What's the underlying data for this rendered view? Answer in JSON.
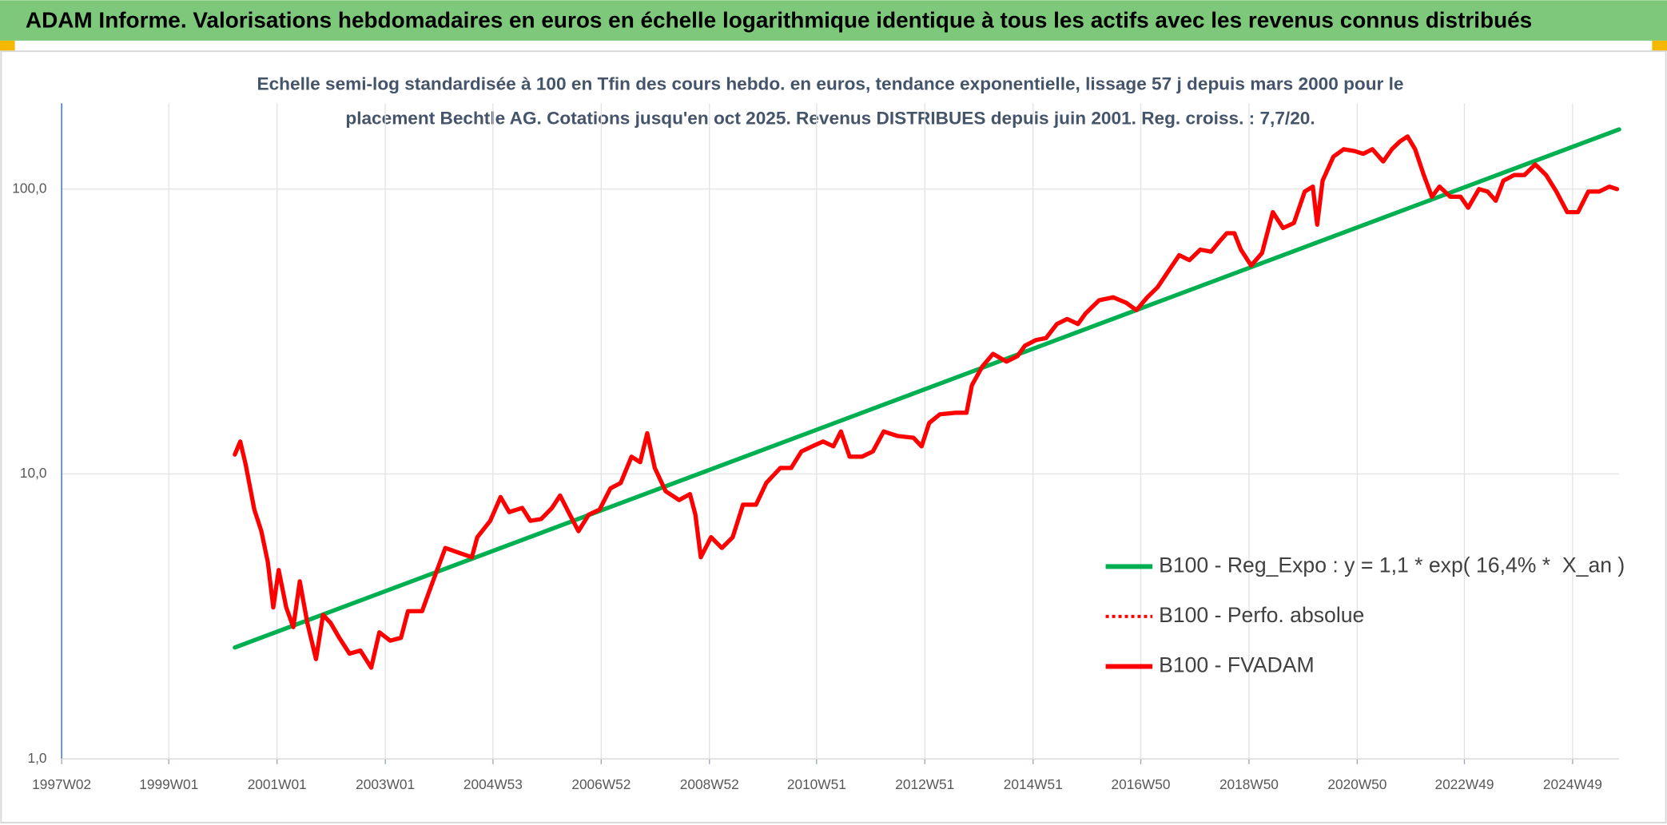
{
  "header": {
    "title": "ADAM Informe. Valorisations hebdomadaires en euros en échelle logarithmique identique à tous les actifs avec les revenus connus distribués"
  },
  "chart_data": {
    "type": "line",
    "title": [
      "Echelle semi-log standardisée à 100 en Tfin des cours hebdo. en euros, tendance exponentielle, lissage 57 j depuis mars 2000 pour le",
      "placement Bechtle AG. Cotations jusqu'en oct 2025. Revenus DISTRIBUES depuis juin 2001. Reg. croiss. : 7,7/20."
    ],
    "xlim": [
      1997.02,
      2025.8
    ],
    "xticks": [
      {
        "value": 1997.02,
        "label": "1997W02"
      },
      {
        "value": 1999.0,
        "label": "1999W01"
      },
      {
        "value": 2001.0,
        "label": "2001W01"
      },
      {
        "value": 2003.0,
        "label": "2003W01"
      },
      {
        "value": 2004.99,
        "label": "2004W53"
      },
      {
        "value": 2006.99,
        "label": "2006W52"
      },
      {
        "value": 2008.99,
        "label": "2008W52"
      },
      {
        "value": 2010.97,
        "label": "2010W51"
      },
      {
        "value": 2012.97,
        "label": "2012W51"
      },
      {
        "value": 2014.97,
        "label": "2014W51"
      },
      {
        "value": 2016.96,
        "label": "2016W50"
      },
      {
        "value": 2018.96,
        "label": "2018W50"
      },
      {
        "value": 2020.96,
        "label": "2020W50"
      },
      {
        "value": 2022.94,
        "label": "2022W49"
      },
      {
        "value": 2024.94,
        "label": "2024W49"
      }
    ],
    "ylim": [
      1,
      200
    ],
    "yticks": [
      {
        "value": 1,
        "label": "1,0"
      },
      {
        "value": 10,
        "label": "10,0"
      },
      {
        "value": 100,
        "label": "100,0"
      }
    ],
    "log_scale": true,
    "grid": true,
    "legend": "center-right",
    "series": [
      {
        "name": "B100 - Reg_Expo : y = 1,1 * exp( 16,4% *  X_an )",
        "color": "#00b050",
        "style": "solid",
        "x": [
          2000.22,
          2025.8
        ],
        "values": [
          2.46,
          162
        ]
      },
      {
        "name": "B100 - Perfo. absolue",
        "color": "#ff0000",
        "style": "dotted",
        "x": [
          2000.22,
          2000.32,
          2000.42,
          2000.58,
          2000.71,
          2000.83,
          2000.93,
          2001.03,
          2001.17,
          2001.3,
          2001.42,
          2001.56,
          2001.72,
          2001.85,
          2001.99,
          2002.15,
          2002.34,
          2002.54,
          2002.74,
          2002.89,
          2003.09,
          2003.29,
          2003.42,
          2003.68,
          2003.88,
          2004.11,
          2004.35,
          2004.6,
          2004.7,
          2004.94,
          2005.13,
          2005.29,
          2005.53,
          2005.68,
          2005.88,
          2006.08,
          2006.23,
          2006.41,
          2006.57,
          2006.76,
          2006.96,
          2007.16,
          2007.35,
          2007.55,
          2007.71,
          2007.84,
          2007.98,
          2008.18,
          2008.43,
          2008.63,
          2008.73,
          2008.83,
          2009.02,
          2009.22,
          2009.42,
          2009.61,
          2009.85,
          2010.04,
          2010.3,
          2010.5,
          2010.69,
          2010.89,
          2011.09,
          2011.28,
          2011.42,
          2011.58,
          2011.81,
          2012.01,
          2012.21,
          2012.46,
          2012.76,
          2012.91,
          2013.05,
          2013.25,
          2013.54,
          2013.74,
          2013.84,
          2014.03,
          2014.23,
          2014.48,
          2014.68,
          2014.82,
          2015.02,
          2015.21,
          2015.41,
          2015.6,
          2015.8,
          2015.94,
          2016.19,
          2016.45,
          2016.69,
          2016.88,
          2017.08,
          2017.27,
          2017.47,
          2017.67,
          2017.86,
          2018.06,
          2018.26,
          2018.41,
          2018.55,
          2018.69,
          2018.81,
          2019.0,
          2019.2,
          2019.4,
          2019.59,
          2019.79,
          2019.99,
          2020.14,
          2020.22,
          2020.32,
          2020.52,
          2020.71,
          2020.91,
          2021.07,
          2021.24,
          2021.44,
          2021.6,
          2021.75,
          2021.89,
          2022.03,
          2022.19,
          2022.34,
          2022.48,
          2022.68,
          2022.87,
          2023.01,
          2023.21,
          2023.37,
          2023.52,
          2023.66,
          2023.86,
          2024.05,
          2024.25,
          2024.45,
          2024.64,
          2024.84,
          2025.04,
          2025.23,
          2025.43,
          2025.62,
          2025.76
        ],
        "values": [
          11.7,
          13.0,
          10.8,
          7.5,
          6.3,
          4.9,
          3.4,
          4.6,
          3.4,
          2.9,
          4.2,
          3.0,
          2.24,
          3.2,
          3.0,
          2.66,
          2.34,
          2.4,
          2.09,
          2.78,
          2.6,
          2.66,
          3.3,
          3.3,
          4.2,
          5.5,
          5.3,
          5.1,
          6.0,
          6.85,
          8.3,
          7.35,
          7.6,
          6.85,
          6.95,
          7.6,
          8.4,
          7.2,
          6.3,
          7.2,
          7.5,
          8.9,
          9.3,
          11.5,
          11.0,
          13.9,
          10.5,
          8.7,
          8.1,
          8.5,
          7.2,
          5.1,
          6.0,
          5.5,
          6.0,
          7.8,
          7.8,
          9.3,
          10.5,
          10.5,
          12.0,
          12.5,
          13.0,
          12.5,
          14.1,
          11.5,
          11.5,
          12.0,
          14.1,
          13.6,
          13.4,
          12.5,
          15.1,
          16.2,
          16.4,
          16.4,
          20.5,
          23.8,
          26.4,
          24.8,
          25.9,
          28.2,
          29.5,
          30.0,
          33.6,
          35.0,
          33.6,
          36.6,
          40.7,
          41.7,
          39.9,
          37.6,
          41.7,
          45.2,
          51.5,
          58.6,
          56.3,
          61.3,
          60.3,
          65.3,
          70.0,
          70.0,
          61.3,
          53.9,
          59.6,
          83,
          73,
          76,
          98,
          102,
          75,
          107,
          130,
          138,
          136,
          133,
          138,
          125,
          138,
          147,
          153,
          138,
          112,
          94,
          102,
          94,
          94,
          86,
          100,
          98,
          91,
          107,
          112,
          112,
          122,
          112,
          98,
          83,
          83,
          98,
          98,
          102,
          100
        ]
      },
      {
        "name": "B100 - FVADAM",
        "color": "#ff0000",
        "style": "solid",
        "x": [
          2000.22,
          2000.32,
          2000.42,
          2000.58,
          2000.71,
          2000.83,
          2000.93,
          2001.03,
          2001.17,
          2001.3,
          2001.42,
          2001.56,
          2001.72,
          2001.85,
          2001.99,
          2002.15,
          2002.34,
          2002.54,
          2002.74,
          2002.89,
          2003.09,
          2003.29,
          2003.42,
          2003.68,
          2003.88,
          2004.11,
          2004.35,
          2004.6,
          2004.7,
          2004.94,
          2005.13,
          2005.29,
          2005.53,
          2005.68,
          2005.88,
          2006.08,
          2006.23,
          2006.41,
          2006.57,
          2006.76,
          2006.96,
          2007.16,
          2007.35,
          2007.55,
          2007.71,
          2007.84,
          2007.98,
          2008.18,
          2008.43,
          2008.63,
          2008.73,
          2008.83,
          2009.02,
          2009.22,
          2009.42,
          2009.61,
          2009.85,
          2010.04,
          2010.3,
          2010.5,
          2010.69,
          2010.89,
          2011.09,
          2011.28,
          2011.42,
          2011.58,
          2011.81,
          2012.01,
          2012.21,
          2012.46,
          2012.76,
          2012.91,
          2013.05,
          2013.25,
          2013.54,
          2013.74,
          2013.84,
          2014.03,
          2014.23,
          2014.48,
          2014.68,
          2014.82,
          2015.02,
          2015.21,
          2015.41,
          2015.6,
          2015.8,
          2015.94,
          2016.19,
          2016.45,
          2016.69,
          2016.88,
          2017.08,
          2017.27,
          2017.47,
          2017.67,
          2017.86,
          2018.06,
          2018.26,
          2018.41,
          2018.55,
          2018.69,
          2018.81,
          2019.0,
          2019.2,
          2019.4,
          2019.59,
          2019.79,
          2019.99,
          2020.14,
          2020.22,
          2020.32,
          2020.52,
          2020.71,
          2020.91,
          2021.07,
          2021.24,
          2021.44,
          2021.6,
          2021.75,
          2021.89,
          2022.03,
          2022.19,
          2022.34,
          2022.48,
          2022.68,
          2022.87,
          2023.01,
          2023.21,
          2023.37,
          2023.52,
          2023.66,
          2023.86,
          2024.05,
          2024.25,
          2024.45,
          2024.64,
          2024.84,
          2025.04,
          2025.23,
          2025.43,
          2025.62,
          2025.76
        ],
        "values": [
          11.7,
          13.0,
          10.8,
          7.5,
          6.3,
          4.9,
          3.4,
          4.6,
          3.4,
          2.9,
          4.2,
          3.0,
          2.24,
          3.2,
          3.0,
          2.66,
          2.34,
          2.4,
          2.09,
          2.78,
          2.6,
          2.66,
          3.3,
          3.3,
          4.2,
          5.5,
          5.3,
          5.1,
          6.0,
          6.85,
          8.3,
          7.35,
          7.6,
          6.85,
          6.95,
          7.6,
          8.4,
          7.2,
          6.3,
          7.2,
          7.5,
          8.9,
          9.3,
          11.5,
          11.0,
          13.9,
          10.5,
          8.7,
          8.1,
          8.5,
          7.2,
          5.1,
          6.0,
          5.5,
          6.0,
          7.8,
          7.8,
          9.3,
          10.5,
          10.5,
          12.0,
          12.5,
          13.0,
          12.5,
          14.1,
          11.5,
          11.5,
          12.0,
          14.1,
          13.6,
          13.4,
          12.5,
          15.1,
          16.2,
          16.4,
          16.4,
          20.5,
          23.8,
          26.4,
          24.8,
          25.9,
          28.2,
          29.5,
          30.0,
          33.6,
          35.0,
          33.6,
          36.6,
          40.7,
          41.7,
          39.9,
          37.6,
          41.7,
          45.2,
          51.5,
          58.6,
          56.3,
          61.3,
          60.3,
          65.3,
          70.0,
          70.0,
          61.3,
          53.9,
          59.6,
          83,
          73,
          76,
          98,
          102,
          75,
          107,
          130,
          138,
          136,
          133,
          138,
          125,
          138,
          147,
          153,
          138,
          112,
          94,
          102,
          94,
          94,
          86,
          100,
          98,
          91,
          107,
          112,
          112,
          122,
          112,
          98,
          83,
          83,
          98,
          98,
          102,
          100
        ]
      }
    ]
  }
}
